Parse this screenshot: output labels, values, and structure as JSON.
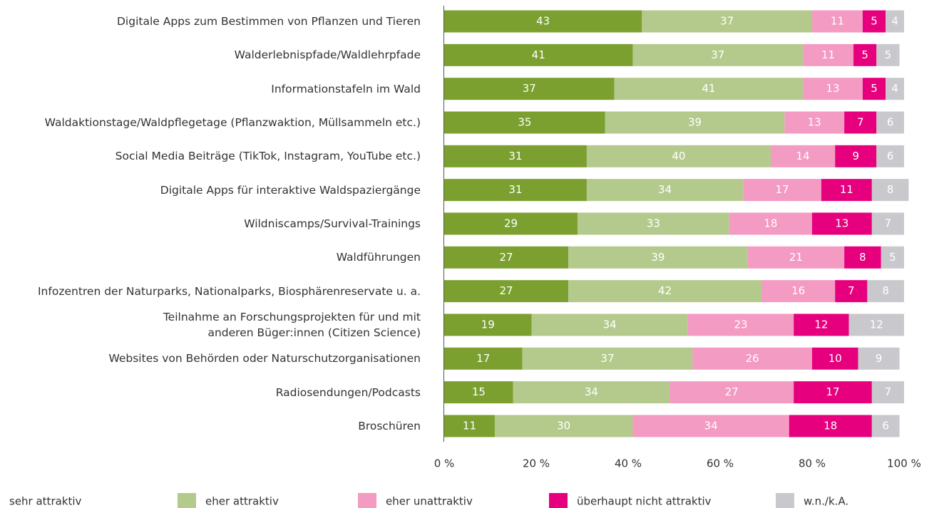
{
  "chart_data": {
    "type": "stacked_barh",
    "categories": [
      "Digitale Apps zum Bestimmen von Pflanzen und Tieren",
      "Walderlebnispfade/Waldlehrpfade",
      "Informationstafeln im Wald",
      "Waldaktionstage/Waldpflegetage (Pflanzwaktion, Müllsammeln etc.)",
      "Social Media Beiträge (TikTok, Instagram, YouTube etc.)",
      "Digitale Apps für interaktive Waldspaziergänge",
      "Wildniscamps/Survival-Trainings",
      "Waldführungen",
      "Infozentren der Naturparks, Nationalparks, Biosphärenreservate u. a.",
      "Teilnahme an Forschungsprojekten für und mit\nanderen Büger:innen (Citizen Science)",
      "Websites von Behörden oder Naturschutzorganisationen",
      "Radiosendungen/Podcasts",
      "Broschüren"
    ],
    "series": [
      {
        "name": "sehr attraktiv",
        "color": "#7ba030",
        "values": [
          43,
          41,
          37,
          35,
          31,
          31,
          29,
          27,
          27,
          19,
          17,
          15,
          11
        ]
      },
      {
        "name": "eher attraktiv",
        "color": "#b4ca8c",
        "values": [
          37,
          37,
          41,
          39,
          40,
          34,
          33,
          39,
          42,
          34,
          37,
          34,
          30
        ]
      },
      {
        "name": "eher unattraktiv",
        "color": "#f39bc2",
        "values": [
          11,
          11,
          13,
          13,
          14,
          17,
          18,
          21,
          16,
          23,
          26,
          27,
          34
        ]
      },
      {
        "name": "überhaupt nicht attraktiv",
        "color": "#e6007e",
        "values": [
          5,
          5,
          5,
          7,
          9,
          11,
          13,
          8,
          7,
          12,
          10,
          17,
          18
        ]
      },
      {
        "name": "w.n./k.A.",
        "color": "#c9c9cd",
        "values": [
          4,
          5,
          4,
          6,
          6,
          8,
          7,
          5,
          8,
          12,
          9,
          7,
          6
        ]
      }
    ],
    "xlim": [
      0,
      100
    ],
    "xticks": [
      {
        "value": 0,
        "label": "0 %"
      },
      {
        "value": 20,
        "label": "20 %"
      },
      {
        "value": 40,
        "label": "40 %"
      },
      {
        "value": 60,
        "label": "60 %"
      },
      {
        "value": 80,
        "label": "80 %"
      },
      {
        "value": 100,
        "label": "100 %"
      }
    ]
  }
}
